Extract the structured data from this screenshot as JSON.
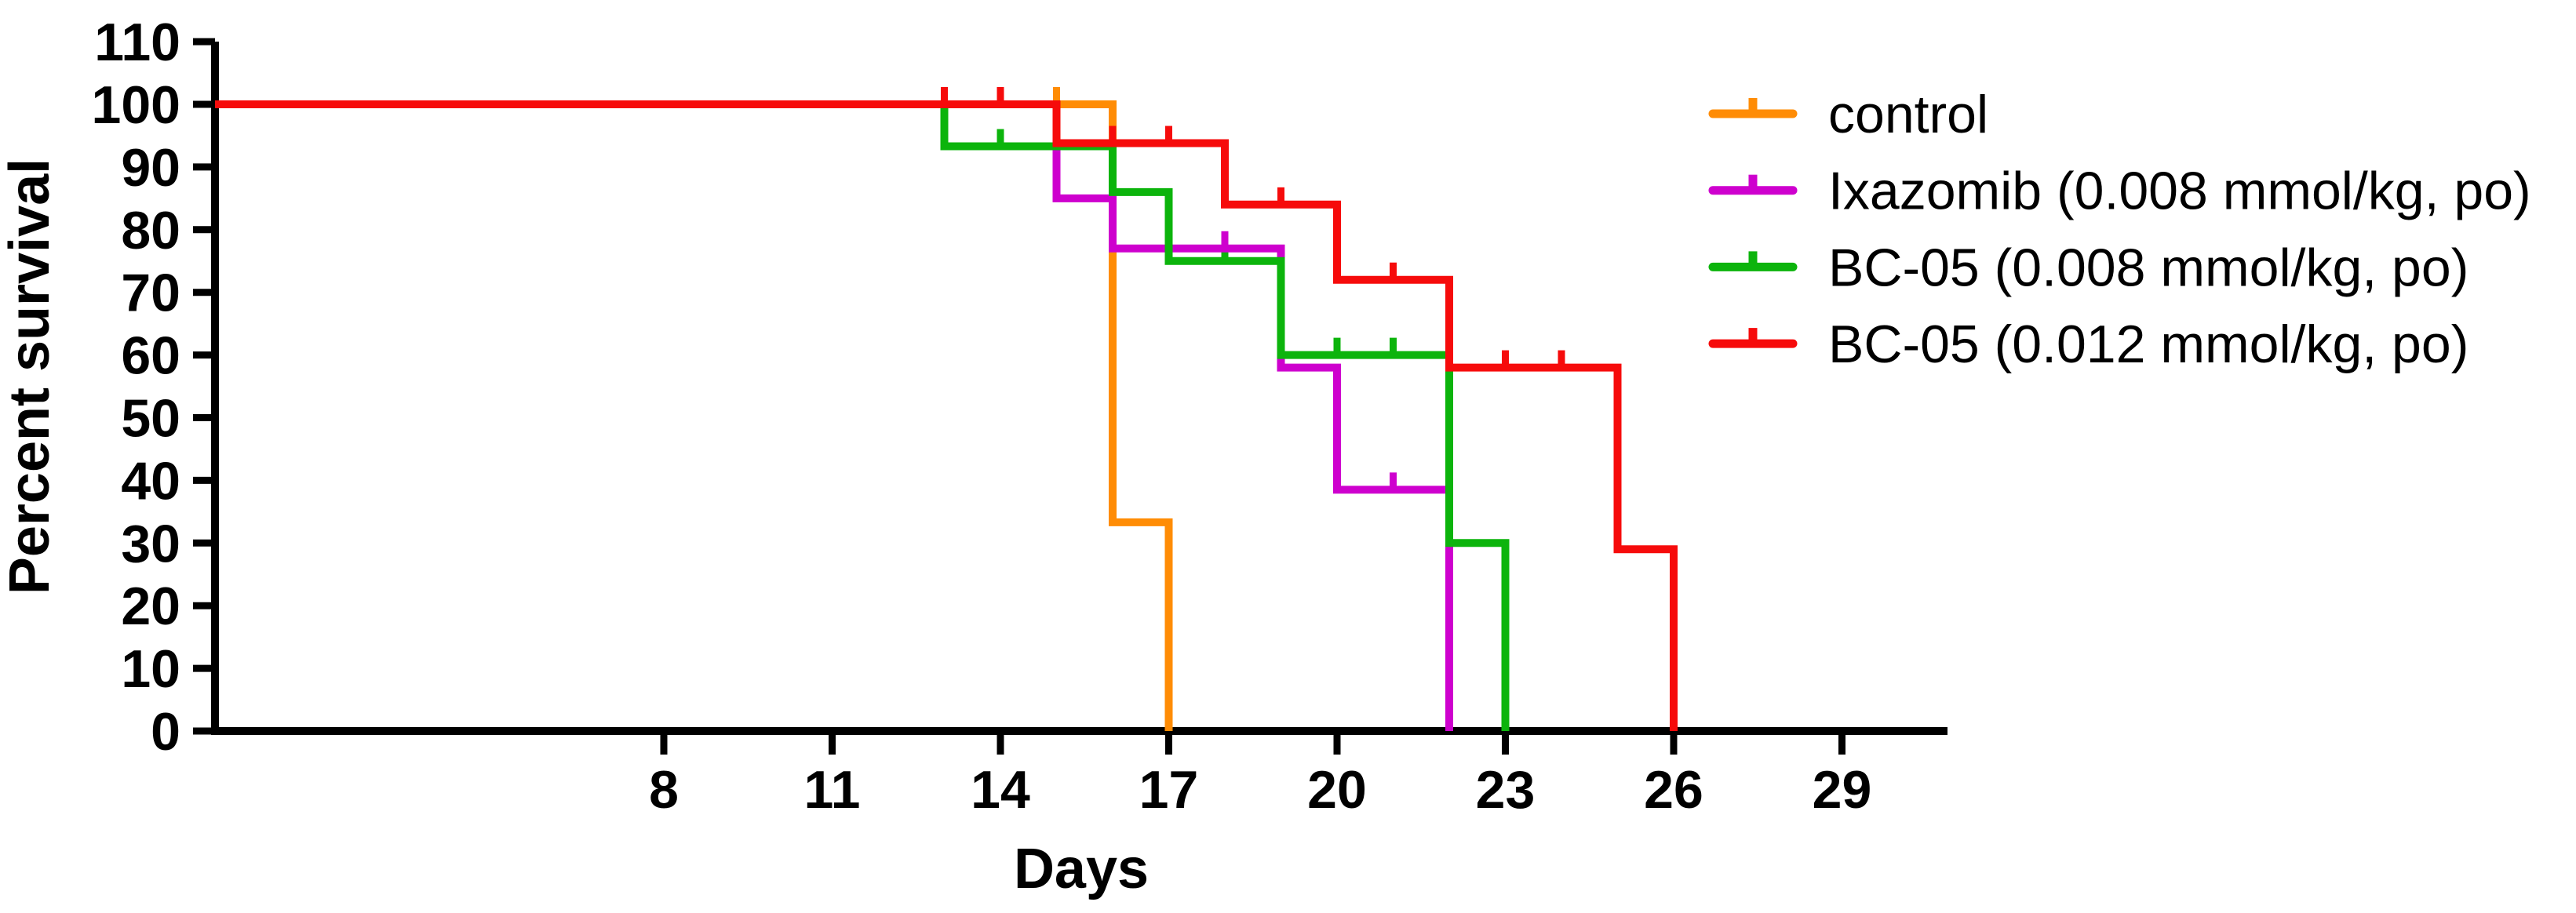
{
  "figure": {
    "background_color": "#FFFFFF",
    "axis_color": "#000000"
  },
  "chart_data": {
    "type": "line",
    "subtype": "kaplan-meier-step-survival",
    "title": "",
    "xlabel": "Days",
    "ylabel": "Percent survival",
    "xlim": [
      0,
      31
    ],
    "ylim": [
      0,
      110
    ],
    "x_ticks": [
      8,
      11,
      14,
      17,
      20,
      23,
      26,
      29
    ],
    "y_ticks": [
      0,
      10,
      20,
      30,
      40,
      50,
      60,
      70,
      80,
      90,
      100,
      110
    ],
    "grid": false,
    "legend_position": "upper right",
    "series": [
      {
        "name": "control",
        "color": "#FF8C05",
        "steps": [
          [
            0,
            100
          ],
          [
            16,
            100
          ],
          [
            16,
            33.3
          ],
          [
            17,
            33.3
          ],
          [
            17,
            0
          ]
        ],
        "censor_marks": [
          [
            15,
            100
          ]
        ]
      },
      {
        "name": "Ixazomib (0.008 mmol/kg, po)",
        "color": "#CE00CE",
        "steps": [
          [
            0,
            100
          ],
          [
            15,
            100
          ],
          [
            15,
            85
          ],
          [
            16,
            85
          ],
          [
            16,
            77
          ],
          [
            19,
            77
          ],
          [
            19,
            58
          ],
          [
            20,
            58
          ],
          [
            20,
            38.5
          ],
          [
            22,
            38.5
          ],
          [
            22,
            0
          ]
        ],
        "censor_marks": [
          [
            18,
            77
          ],
          [
            21,
            38.5
          ]
        ]
      },
      {
        "name": "BC-05 (0.008 mmol/kg, po)",
        "color": "#0CB40C",
        "steps": [
          [
            0,
            100
          ],
          [
            13,
            100
          ],
          [
            13,
            93.3
          ],
          [
            16,
            93.3
          ],
          [
            16,
            86
          ],
          [
            17,
            86
          ],
          [
            17,
            75
          ],
          [
            19,
            75
          ],
          [
            19,
            60
          ],
          [
            22,
            60
          ],
          [
            22,
            30
          ],
          [
            23,
            30
          ],
          [
            23,
            0
          ]
        ],
        "censor_marks": [
          [
            14,
            93.3
          ],
          [
            18,
            75
          ],
          [
            20,
            60
          ],
          [
            21,
            60
          ]
        ]
      },
      {
        "name": "BC-05 (0.012 mmol/kg, po)",
        "color": "#F60B0B",
        "steps": [
          [
            0,
            100
          ],
          [
            15,
            100
          ],
          [
            15,
            93.8
          ],
          [
            18,
            93.8
          ],
          [
            18,
            84
          ],
          [
            20,
            84
          ],
          [
            20,
            72
          ],
          [
            22,
            72
          ],
          [
            22,
            58
          ],
          [
            25,
            58
          ],
          [
            25,
            29
          ],
          [
            26,
            29
          ],
          [
            26,
            0
          ]
        ],
        "censor_marks": [
          [
            13,
            100
          ],
          [
            14,
            100
          ],
          [
            16,
            93.8
          ],
          [
            17,
            93.8
          ],
          [
            19,
            84
          ],
          [
            21,
            72
          ],
          [
            23,
            58
          ],
          [
            24,
            58
          ]
        ]
      }
    ]
  }
}
